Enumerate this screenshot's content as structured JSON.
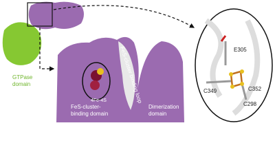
{
  "labels": {
    "gtpase_domain": [
      "GTPase",
      "domain"
    ],
    "cluster": "4Fe-4S",
    "fes_binding_domain": [
      "FeS-cluster-",
      "binding domain"
    ],
    "binding_loop": "FeS-cluster binding loop",
    "dimerization_domain": [
      "Dimerization",
      "domain"
    ],
    "residues": [
      "E305",
      "C349",
      "C352",
      "C298"
    ]
  }
}
